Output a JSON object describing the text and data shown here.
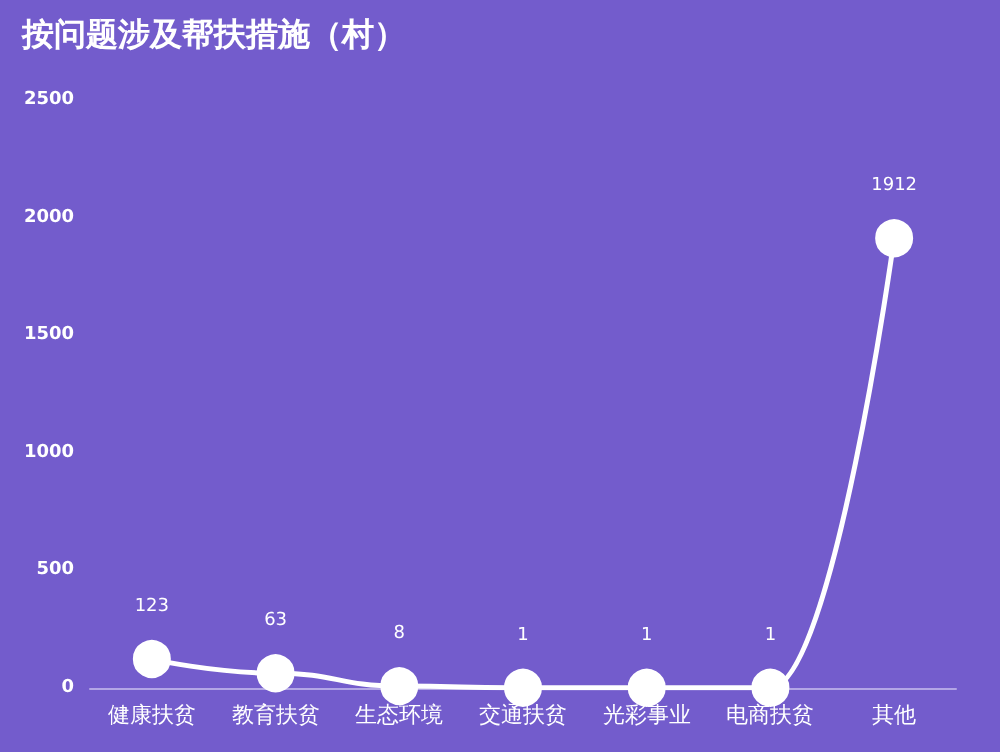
{
  "chart_data": {
    "type": "line",
    "title": "按问题涉及帮扶措施（村）",
    "categories": [
      "健康扶贫",
      "教育扶贫",
      "生态环境",
      "交通扶贫",
      "光彩事业",
      "电商扶贫",
      "其他"
    ],
    "series": [
      {
        "color": "#ffffff",
        "values": [
          123,
          63,
          8,
          1,
          1,
          1,
          1912
        ]
      }
    ],
    "ylim": [
      0,
      2500
    ],
    "yticks": [
      0,
      500,
      1000,
      1500,
      2000,
      2500
    ],
    "grid": false,
    "marker": "circle",
    "line_style": "solid",
    "data_labels": true
  }
}
